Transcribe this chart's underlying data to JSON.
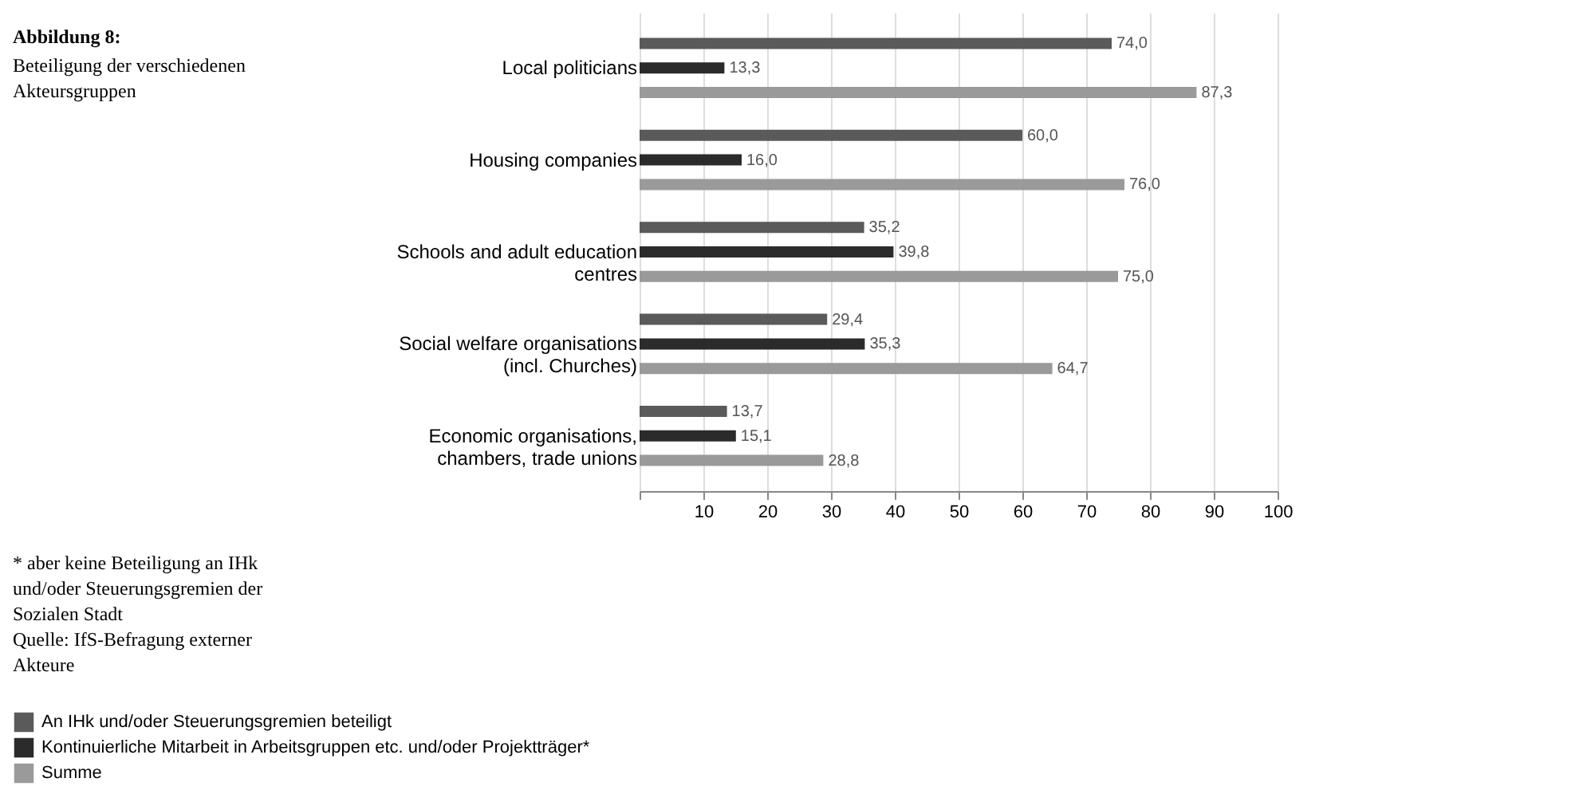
{
  "chart_data": {
    "type": "bar",
    "orientation": "horizontal",
    "title": "Abbildung 8:",
    "subtitle": "Beteiligung der verschiedenen Akteursgruppen",
    "categories": [
      "Local politicians",
      "Housing companies",
      "Schools and adult education centres",
      "Social welfare organisations (incl. Churches)",
      "Economic organisations, chambers, trade unions"
    ],
    "series": [
      {
        "name": "An IHk und/oder Steuerungsgremien beteiligt",
        "color": "#5a5a5a",
        "values": [
          74.0,
          60.0,
          35.2,
          29.4,
          13.7
        ],
        "value_labels": [
          "74,0",
          "60,0",
          "35,2",
          "29,4",
          "13,7"
        ]
      },
      {
        "name": "Kontinuierliche Mitarbeit in Arbeitsgruppen etc. und/oder Projektträger*",
        "color": "#2b2b2b",
        "values": [
          13.3,
          16.0,
          39.8,
          35.3,
          15.1
        ],
        "value_labels": [
          "13,3",
          "16,0",
          "39,8",
          "35,3",
          "15,1"
        ]
      },
      {
        "name": "Summe",
        "color": "#9a9a9a",
        "values": [
          87.3,
          76.0,
          75.0,
          64.7,
          28.8
        ],
        "value_labels": [
          "87,3",
          "76,0",
          "75,0",
          "64,7",
          "28,8"
        ]
      }
    ],
    "xlim": [
      0,
      100
    ],
    "xticks": [
      {
        "value": 0,
        "label": null
      },
      10,
      20,
      30,
      40,
      50,
      60,
      70,
      80,
      90,
      100
    ],
    "grid": "x",
    "legend": "bottom",
    "annotations": [
      "* aber keine Beteiligung an IHk und/oder Steuerungsgremien der Sozialen Stadt",
      "Quelle: IfS-Befragung externer Akteure"
    ]
  }
}
